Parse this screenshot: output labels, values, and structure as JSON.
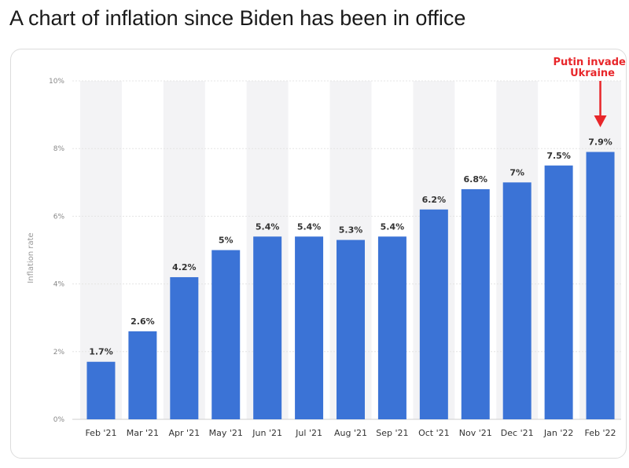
{
  "post": {
    "title": "A chart of inflation since Biden has been in office"
  },
  "chart_data": {
    "type": "bar",
    "categories": [
      "Feb '21",
      "Mar '21",
      "Apr '21",
      "May '21",
      "Jun '21",
      "Jul '21",
      "Aug '21",
      "Sep '21",
      "Oct '21",
      "Nov '21",
      "Dec '21",
      "Jan '22",
      "Feb '22"
    ],
    "values": [
      1.7,
      2.6,
      4.2,
      5.0,
      5.4,
      5.4,
      5.3,
      5.4,
      6.2,
      6.8,
      7.0,
      7.5,
      7.9
    ],
    "value_labels": [
      "1.7%",
      "2.6%",
      "4.2%",
      "5%",
      "5.4%",
      "5.4%",
      "5.3%",
      "5.4%",
      "6.2%",
      "6.8%",
      "7%",
      "7.5%",
      "7.9%"
    ],
    "ylabel": "Inflation rate",
    "ylim": [
      0,
      10
    ],
    "y_ticks": [
      0,
      2,
      4,
      6,
      8,
      10
    ],
    "y_tick_labels": [
      "0%",
      "2%",
      "4%",
      "6%",
      "8%",
      "10%"
    ],
    "grid": true,
    "bar_color": "#3b73d6",
    "annotation": {
      "line1": "Putin invades",
      "line2": "Ukraine",
      "target_category": "Feb '22",
      "color": "#e8262a"
    }
  }
}
